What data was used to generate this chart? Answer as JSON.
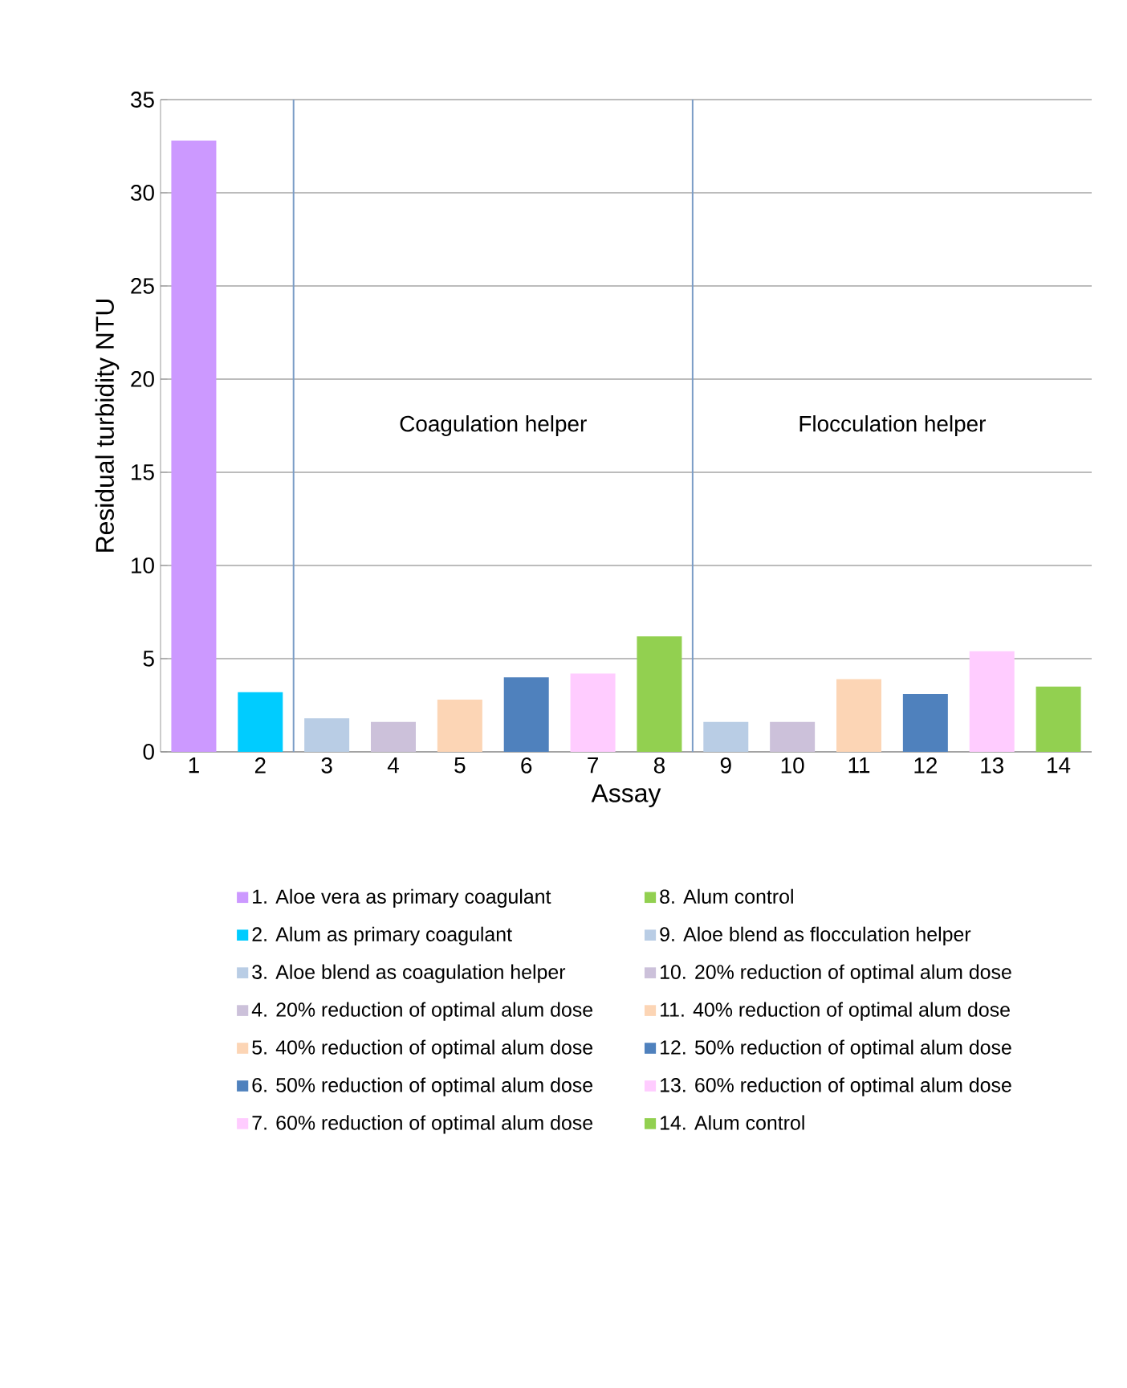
{
  "chart_data": {
    "type": "bar",
    "xlabel": "Assay",
    "ylabel": "Residual turbidity NTU",
    "x": [
      1,
      2,
      3,
      4,
      5,
      6,
      7,
      8,
      9,
      10,
      11,
      12,
      13,
      14
    ],
    "xlim": [
      0.5,
      14.5
    ],
    "xticks": [
      1,
      2,
      3,
      4,
      5,
      6,
      7,
      8,
      9,
      10,
      11,
      12,
      13,
      14
    ],
    "ylim": [
      0,
      35
    ],
    "yticks": [
      0,
      5,
      10,
      15,
      20,
      25,
      30,
      35
    ],
    "grid": "y",
    "legend": "bottom",
    "ref_lines": [
      {
        "axis": "x",
        "value": 2.5,
        "color": "#7a9cc6"
      },
      {
        "axis": "x",
        "value": 8.5,
        "color": "#7a9cc6"
      }
    ],
    "annotations": [
      "Coagulation helper",
      "Flocculation helper"
    ],
    "series": [
      {
        "name": "1. Aloe vera as primary coagulant",
        "color": "#cc99ff",
        "values": [
          32.8,
          null,
          null,
          null,
          null,
          null,
          null,
          null,
          null,
          null,
          null,
          null,
          null,
          null
        ]
      },
      {
        "name": "2. Alum as primary coagulant",
        "color": "#00ccff",
        "values": [
          null,
          3.2,
          null,
          null,
          null,
          null,
          null,
          null,
          null,
          null,
          null,
          null,
          null,
          null
        ]
      },
      {
        "name": "3. Aloe blend as coagulation helper",
        "color": "#b9cde5",
        "values": [
          null,
          null,
          1.8,
          null,
          null,
          null,
          null,
          null,
          null,
          null,
          null,
          null,
          null,
          null
        ]
      },
      {
        "name": "4. 20% reduction of optimal alum dose",
        "color": "#ccc1da",
        "values": [
          null,
          null,
          null,
          1.6,
          null,
          null,
          null,
          null,
          null,
          null,
          null,
          null,
          null,
          null
        ]
      },
      {
        "name": "5. 40% reduction of optimal alum dose",
        "color": "#fcd5b5",
        "values": [
          null,
          null,
          null,
          null,
          2.8,
          null,
          null,
          null,
          null,
          null,
          null,
          null,
          null,
          null
        ]
      },
      {
        "name": "6. 50% reduction of optimal alum dose",
        "color": "#4f81bd",
        "values": [
          null,
          null,
          null,
          null,
          null,
          4.0,
          null,
          null,
          null,
          null,
          null,
          null,
          null,
          null
        ]
      },
      {
        "name": "7. 60% reduction of optimal alum dose",
        "color": "#ffccff",
        "values": [
          null,
          null,
          null,
          null,
          null,
          null,
          4.2,
          null,
          null,
          null,
          null,
          null,
          null,
          null
        ]
      },
      {
        "name": "8. Alum control",
        "color": "#92d050",
        "values": [
          null,
          null,
          null,
          null,
          null,
          null,
          null,
          6.2,
          null,
          null,
          null,
          null,
          null,
          null
        ]
      },
      {
        "name": "9. Aloe blend as flocculation helper",
        "color": "#b9cde5",
        "values": [
          null,
          null,
          null,
          null,
          null,
          null,
          null,
          null,
          1.6,
          null,
          null,
          null,
          null,
          null
        ]
      },
      {
        "name": "10. 20% reduction of optimal alum dose",
        "color": "#ccc1da",
        "values": [
          null,
          null,
          null,
          null,
          null,
          null,
          null,
          null,
          null,
          1.6,
          null,
          null,
          null,
          null
        ]
      },
      {
        "name": "11. 40% reduction of optimal alum dose",
        "color": "#fcd5b5",
        "values": [
          null,
          null,
          null,
          null,
          null,
          null,
          null,
          null,
          null,
          null,
          3.9,
          null,
          null,
          null
        ]
      },
      {
        "name": "12. 50% reduction of optimal alum dose",
        "color": "#4f81bd",
        "values": [
          null,
          null,
          null,
          null,
          null,
          null,
          null,
          null,
          null,
          null,
          null,
          3.1,
          null,
          null
        ]
      },
      {
        "name": "13. 60% reduction of optimal alum dose",
        "color": "#ffccff",
        "values": [
          null,
          null,
          null,
          null,
          null,
          null,
          null,
          null,
          null,
          null,
          null,
          null,
          5.4,
          null
        ]
      },
      {
        "name": "14. Alum control",
        "color": "#92d050",
        "values": [
          null,
          null,
          null,
          null,
          null,
          null,
          null,
          null,
          null,
          null,
          null,
          null,
          null,
          3.5
        ]
      }
    ]
  }
}
